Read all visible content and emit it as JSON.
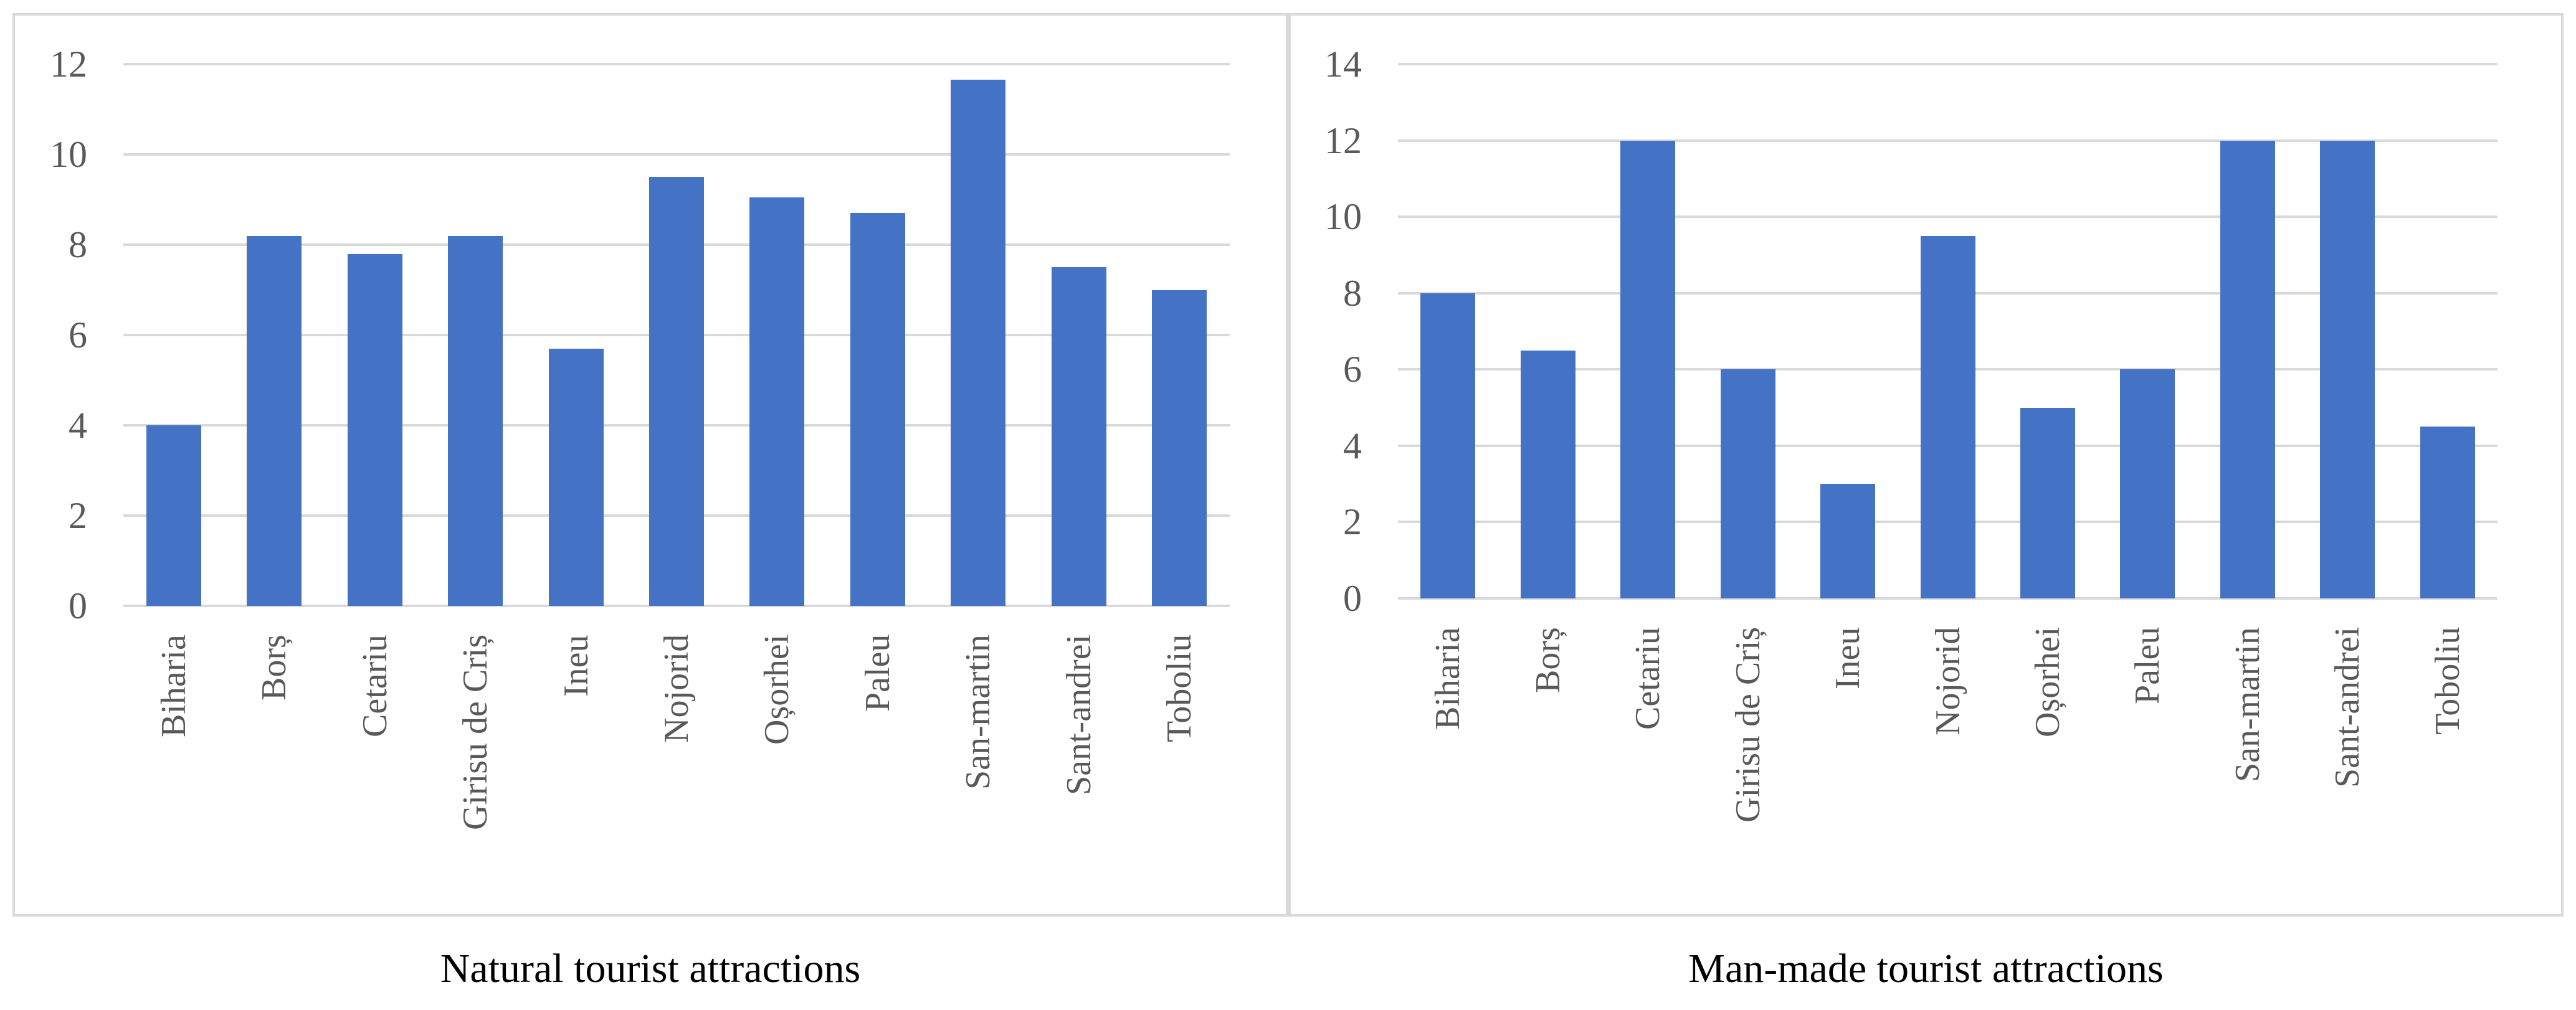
{
  "figure": {
    "type": "side-by-side bar charts",
    "background": "#ffffff"
  },
  "colors": {
    "bar": "#4472c4",
    "gridline": "#d9d9d9",
    "panel_border": "#d9d9d9",
    "axis_text": "#595959",
    "caption_text": "#000000"
  },
  "chart_data": [
    {
      "type": "bar",
      "title": "Natural tourist attractions",
      "categories": [
        "Biharia",
        "Borș",
        "Cetariu",
        "Girisu de Criș",
        "Ineu",
        "Nojorid",
        "Oșorhei",
        "Paleu",
        "San-martin",
        "Sant-andrei",
        "Toboliu"
      ],
      "values": [
        4,
        8.2,
        7.8,
        8.2,
        5.7,
        9.5,
        9.05,
        8.7,
        11.65,
        7.5,
        7
      ],
      "xlabel": "",
      "ylabel": "",
      "ylim": [
        0,
        12
      ],
      "yticks": [
        0,
        2,
        4,
        6,
        8,
        10,
        12
      ],
      "grid": true,
      "legend": false
    },
    {
      "type": "bar",
      "title": "Man-made tourist attractions",
      "categories": [
        "Biharia",
        "Borș",
        "Cetariu",
        "Girisu de Criș",
        "Ineu",
        "Nojorid",
        "Oșorhei",
        "Paleu",
        "San-martin",
        "Sant-andrei",
        "Toboliu"
      ],
      "values": [
        8,
        6.5,
        12,
        6,
        3,
        9.5,
        5,
        6,
        12,
        12,
        4.5
      ],
      "xlabel": "",
      "ylabel": "",
      "ylim": [
        0,
        14
      ],
      "yticks": [
        0,
        2,
        4,
        6,
        8,
        10,
        12,
        14
      ],
      "grid": true,
      "legend": false
    }
  ]
}
